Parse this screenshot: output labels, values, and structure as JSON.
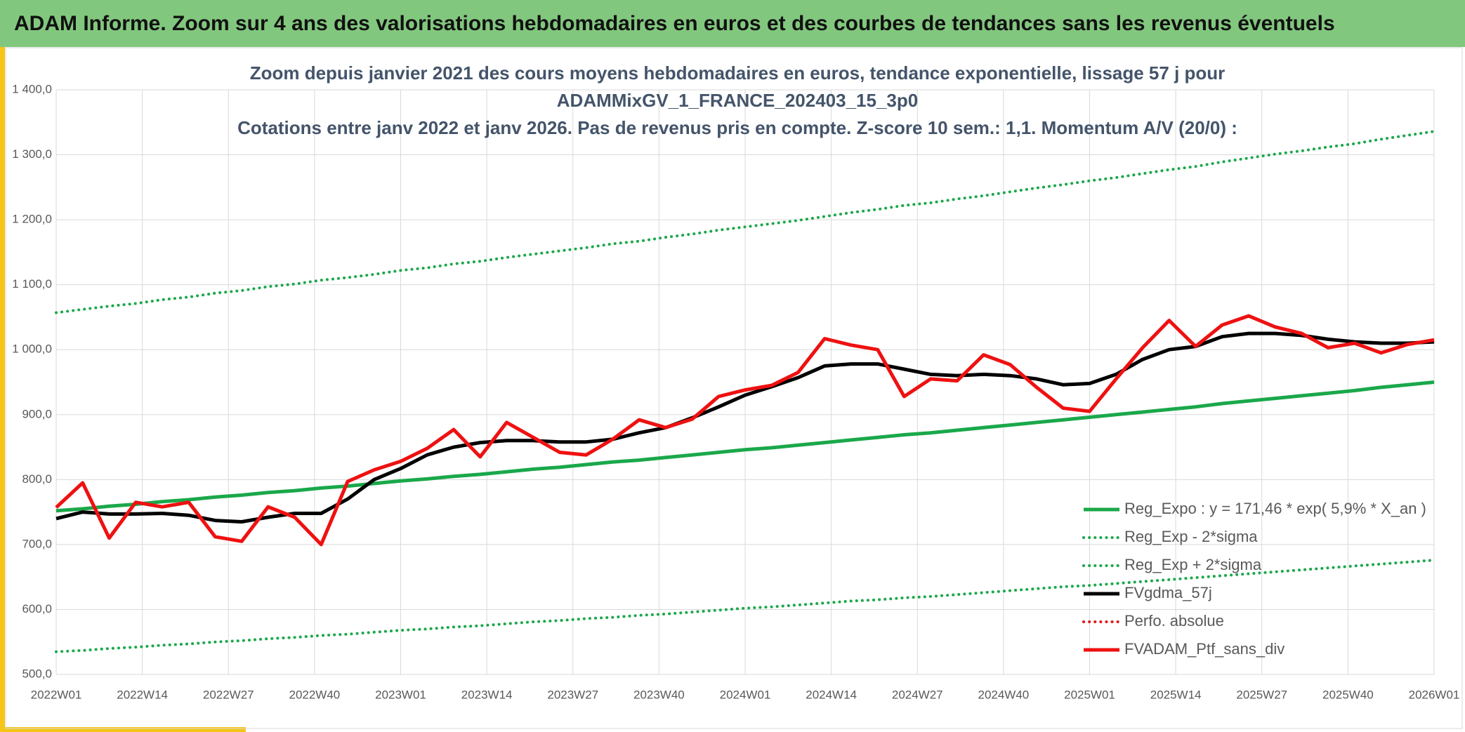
{
  "header": {
    "title": "ADAM Informe. Zoom sur 4 ans des valorisations hebdomadaires en euros et des courbes de tendances sans les revenus éventuels",
    "color": "#82c77e"
  },
  "chart_data": {
    "type": "line",
    "title": [
      "Zoom depuis janvier 2021 des cours moyens hebdomadaires en euros, tendance exponentielle, lissage 57 j pour",
      "ADAMMixGV_1_FRANCE_202403_15_3p0",
      "Cotations entre janv 2022 et janv 2026. Pas de revenus pris en compte. Z-score 10 sem.: 1,1. Momentum A/V (20/0) :"
    ],
    "x": [
      0,
      4,
      8,
      12,
      16,
      20,
      24,
      28,
      32,
      36,
      40,
      44,
      48,
      52,
      56,
      60,
      64,
      68,
      72,
      76,
      80,
      84,
      88,
      92,
      96,
      100,
      104,
      108,
      112,
      116,
      120,
      124,
      128,
      132,
      136,
      140,
      144,
      148,
      152,
      156,
      160,
      164,
      168,
      172,
      176,
      180,
      184,
      188,
      192,
      196,
      200,
      204,
      208
    ],
    "xlim": [
      0,
      208
    ],
    "xticks": [
      {
        "value": 0,
        "label": "2022W01"
      },
      {
        "value": 13,
        "label": "2022W14"
      },
      {
        "value": 26,
        "label": "2022W27"
      },
      {
        "value": 39,
        "label": "2022W40"
      },
      {
        "value": 52,
        "label": "2023W01"
      },
      {
        "value": 65,
        "label": "2023W14"
      },
      {
        "value": 78,
        "label": "2023W27"
      },
      {
        "value": 91,
        "label": "2023W40"
      },
      {
        "value": 104,
        "label": "2024W01"
      },
      {
        "value": 117,
        "label": "2024W14"
      },
      {
        "value": 130,
        "label": "2024W27"
      },
      {
        "value": 143,
        "label": "2024W40"
      },
      {
        "value": 156,
        "label": "2025W01"
      },
      {
        "value": 169,
        "label": "2025W14"
      },
      {
        "value": 182,
        "label": "2025W27"
      },
      {
        "value": 195,
        "label": "2025W40"
      },
      {
        "value": 208,
        "label": "2026W01"
      }
    ],
    "ylim": [
      500,
      1400
    ],
    "yticks": [
      {
        "value": 500,
        "label": "500,0"
      },
      {
        "value": 600,
        "label": "600,0"
      },
      {
        "value": 700,
        "label": "700,0"
      },
      {
        "value": 800,
        "label": "800,0"
      },
      {
        "value": 900,
        "label": "900,0"
      },
      {
        "value": 1000,
        "label": "1 000,0"
      },
      {
        "value": 1100,
        "label": "1 100,0"
      },
      {
        "value": 1200,
        "label": "1 200,0"
      },
      {
        "value": 1300,
        "label": "1 300,0"
      },
      {
        "value": 1400,
        "label": "1 400,0"
      }
    ],
    "grid": true,
    "legend": "lower right",
    "series": [
      {
        "name": "Reg_Expo : y = 171,46 * exp( 5,9% *  X_an )",
        "color": "#1aa84a",
        "dash": "solid",
        "values": [
          752,
          755,
          759,
          762,
          766,
          769,
          773,
          776,
          780,
          783,
          787,
          790,
          794,
          798,
          801,
          805,
          808,
          812,
          816,
          819,
          823,
          827,
          830,
          834,
          838,
          842,
          846,
          849,
          853,
          857,
          861,
          865,
          869,
          872,
          876,
          880,
          884,
          888,
          892,
          896,
          900,
          904,
          908,
          912,
          917,
          921,
          925,
          929,
          933,
          937,
          942,
          946,
          950
        ]
      },
      {
        "name": "Reg_Exp - 2*sigma",
        "color": "#1aa84a",
        "dash": "dotted",
        "values": [
          535,
          537,
          540,
          542,
          545,
          547,
          550,
          552,
          555,
          557,
          560,
          562,
          565,
          568,
          570,
          573,
          575,
          578,
          581,
          583,
          586,
          588,
          591,
          593,
          596,
          599,
          602,
          604,
          607,
          610,
          613,
          615,
          618,
          620,
          623,
          626,
          629,
          632,
          635,
          637,
          640,
          643,
          646,
          649,
          652,
          655,
          658,
          661,
          664,
          667,
          670,
          673,
          676
        ]
      },
      {
        "name": "Reg_Exp + 2*sigma",
        "color": "#1aa84a",
        "dash": "dotted",
        "values": [
          1057,
          1062,
          1067,
          1071,
          1077,
          1081,
          1087,
          1091,
          1097,
          1101,
          1107,
          1111,
          1116,
          1122,
          1126,
          1132,
          1136,
          1142,
          1147,
          1152,
          1157,
          1163,
          1167,
          1173,
          1178,
          1184,
          1189,
          1194,
          1199,
          1205,
          1211,
          1216,
          1222,
          1226,
          1232,
          1237,
          1243,
          1249,
          1254,
          1260,
          1265,
          1271,
          1277,
          1282,
          1289,
          1295,
          1301,
          1306,
          1312,
          1317,
          1324,
          1330,
          1336
        ]
      },
      {
        "name": "FVgdma_57j",
        "color": "#000000",
        "dash": "solid",
        "values": [
          740,
          750,
          747,
          747,
          748,
          745,
          737,
          735,
          742,
          748,
          748,
          770,
          800,
          817,
          838,
          850,
          857,
          860,
          860,
          858,
          858,
          862,
          872,
          880,
          895,
          912,
          930,
          943,
          957,
          975,
          978,
          978,
          970,
          962,
          960,
          962,
          960,
          955,
          946,
          948,
          962,
          985,
          1000,
          1005,
          1020,
          1025,
          1025,
          1022,
          1016,
          1012,
          1010,
          1010,
          1012
        ]
      },
      {
        "name": "Perfo. absolue",
        "color": "#e31a1c",
        "dash": "dotted",
        "values": [
          null,
          null,
          null,
          null,
          null,
          null,
          null,
          null,
          null,
          null,
          null,
          null,
          null,
          null,
          null,
          null,
          null,
          null,
          null,
          null,
          null,
          null,
          null,
          null,
          null,
          null,
          null,
          null,
          null,
          null,
          null,
          null,
          null,
          null,
          null,
          null,
          null,
          null,
          null,
          null,
          null,
          null,
          null,
          null,
          null,
          null,
          null,
          null,
          null,
          null,
          null,
          null,
          null
        ]
      },
      {
        "name": "FVADAM_Ptf_sans_div",
        "color": "#ee1111",
        "dash": "solid",
        "values": [
          757,
          795,
          710,
          765,
          758,
          765,
          712,
          705,
          758,
          742,
          700,
          797,
          815,
          828,
          848,
          877,
          835,
          888,
          865,
          842,
          838,
          862,
          892,
          880,
          893,
          928,
          938,
          945,
          965,
          1017,
          1007,
          1000,
          928,
          955,
          952,
          992,
          977,
          942,
          910,
          905,
          955,
          1003,
          1045,
          1005,
          1038,
          1052,
          1035,
          1025,
          1003,
          1010,
          995,
          1008,
          1015
        ]
      }
    ]
  }
}
